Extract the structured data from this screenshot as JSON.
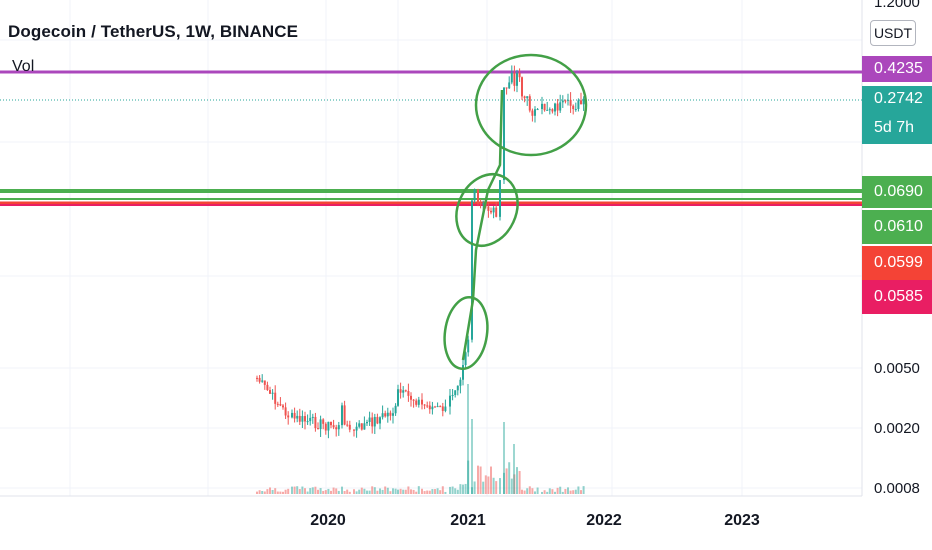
{
  "header": {
    "title": "Dogecoin / TetherUS, 1W, BINANCE",
    "vol_label": "Vol"
  },
  "price_axis": {
    "currency": "USDT",
    "ticks": [
      "1.2000",
      "0.0050",
      "0.0020",
      "0.0008"
    ]
  },
  "price_tags": [
    {
      "label": "0.4235",
      "color": "#ab47bc"
    },
    {
      "label": "0.2742",
      "color": "#26a69a"
    },
    {
      "label": "5d 7h",
      "color": "#26a69a"
    },
    {
      "label": "0.0690",
      "color": "#4caf50"
    },
    {
      "label": "0.0610",
      "color": "#4caf50"
    },
    {
      "label": "0.0599",
      "color": "#f44336"
    },
    {
      "label": "0.0585",
      "color": "#e91e63"
    }
  ],
  "time_axis": {
    "labels": [
      "2020",
      "2021",
      "2022",
      "2023"
    ]
  },
  "colors": {
    "up": "#26a69a",
    "down": "#ef5350",
    "purple_line": "#ab47bc",
    "green_line": "#4caf50",
    "red_line": "#f44336",
    "pink_line": "#e91e63",
    "annotation": "#43a047",
    "grid": "#f0f3fa"
  },
  "chart_data": {
    "type": "candlestick",
    "title": "Dogecoin / TetherUS, 1W, BINANCE",
    "y_scale": "log",
    "y_unit": "USDT",
    "horizontal_levels": [
      {
        "value": 0.4235,
        "color": "#ab47bc"
      },
      {
        "value": 0.069,
        "color": "#4caf50"
      },
      {
        "value": 0.061,
        "color": "#4caf50"
      },
      {
        "value": 0.0599,
        "color": "#f44336"
      },
      {
        "value": 0.0585,
        "color": "#e91e63"
      }
    ],
    "last_price": 0.2742,
    "countdown": "5d 7h",
    "series": [
      {
        "name": "Vol"
      }
    ],
    "annotations": [
      "circle",
      "circle",
      "circle",
      "connecting-line"
    ]
  }
}
